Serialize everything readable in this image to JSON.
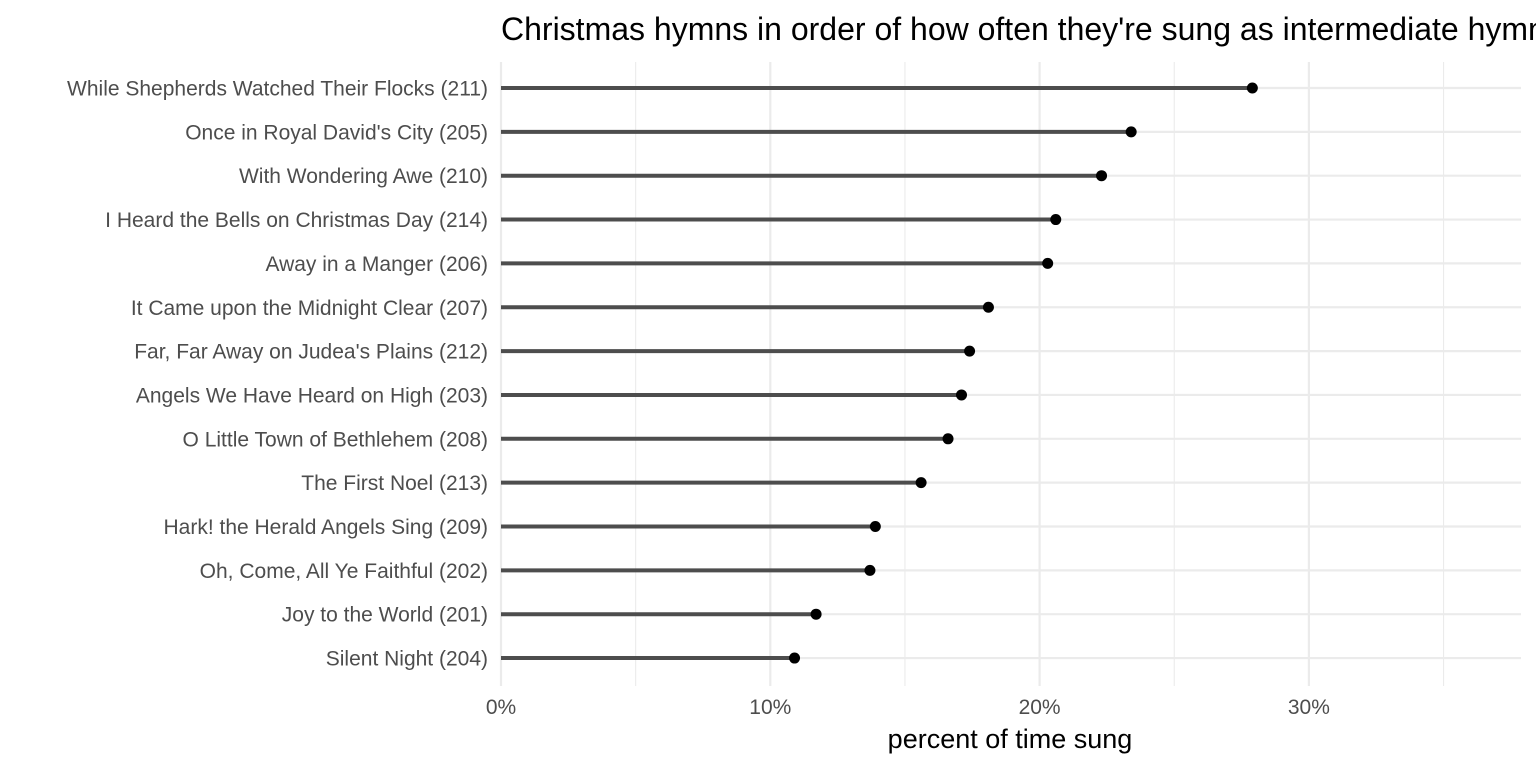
{
  "chart_data": {
    "type": "lollipop",
    "title": "Christmas hymns in order of how often they're sung as intermediate hymns",
    "xlabel": "percent of time sung",
    "ylabel": "",
    "xlim": [
      0,
      37.6
    ],
    "x_ticks": [
      0,
      10,
      20,
      30
    ],
    "x_tick_labels": [
      "0%",
      "10%",
      "20%",
      "30%"
    ],
    "grid": true,
    "categories": [
      "While Shepherds Watched Their Flocks (211)",
      "Once in Royal David's City (205)",
      "With Wondering Awe (210)",
      "I Heard the Bells on Christmas Day (214)",
      "Away in a Manger (206)",
      "It Came upon the Midnight Clear (207)",
      "Far, Far Away on Judea's Plains (212)",
      "Angels We Have Heard on High (203)",
      "O Little Town of Bethlehem (208)",
      "The First Noel (213)",
      "Hark! the Herald Angels Sing (209)",
      "Oh, Come, All Ye Faithful (202)",
      "Joy to the World (201)",
      "Silent Night (204)"
    ],
    "values": [
      27.9,
      23.4,
      22.3,
      20.6,
      20.3,
      18.1,
      17.4,
      17.1,
      16.6,
      15.6,
      13.9,
      13.7,
      11.7,
      10.9
    ],
    "colors": {
      "stem": "#4d4d4d",
      "point": "#000000",
      "grid": "#ebebeb"
    }
  }
}
